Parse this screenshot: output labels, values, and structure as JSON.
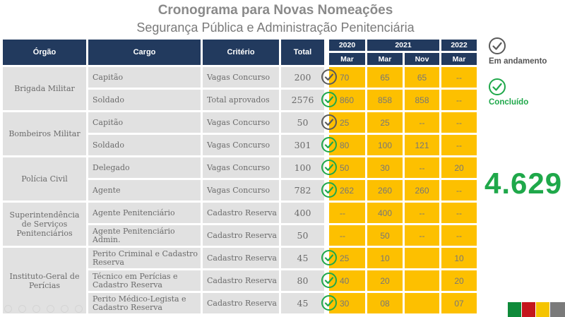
{
  "title": "Cronograma para Novas Nomeações",
  "subtitle": "Segurança Pública e Administração Penitenciária",
  "headers": {
    "orgao": "Órgão",
    "cargo": "Cargo",
    "criterio": "Critério",
    "total": "Total"
  },
  "years": {
    "y2020": "2020",
    "y2021": "2021",
    "y2022": "2022"
  },
  "months": {
    "m2020": "Mar",
    "m2021a": "Mar",
    "m2021b": "Nov",
    "m2022": "Mar"
  },
  "orgaos": [
    {
      "name": "Brigada Militar"
    },
    {
      "name": "Bombeiros Militar"
    },
    {
      "name": "Polícia Civil"
    },
    {
      "name": "Superintendência de Serviços Penitenciários"
    },
    {
      "name": "Instituto-Geral de Perícias"
    }
  ],
  "rows": [
    {
      "cargo": "Capitão",
      "criterio": "Vagas Concurso",
      "total": "200",
      "c2020": "70",
      "c2021a": "65",
      "c2021b": "65",
      "c2022": "--",
      "status": "in-progress"
    },
    {
      "cargo": "Soldado",
      "criterio": "Total aprovados",
      "total": "2576",
      "c2020": "860",
      "c2021a": "858",
      "c2021b": "858",
      "c2022": "--",
      "status": "done"
    },
    {
      "cargo": "Capitão",
      "criterio": "Vagas Concurso",
      "total": "50",
      "c2020": "25",
      "c2021a": "25",
      "c2021b": "--",
      "c2022": "--",
      "status": "in-progress"
    },
    {
      "cargo": "Soldado",
      "criterio": "Vagas Concurso",
      "total": "301",
      "c2020": "80",
      "c2021a": "100",
      "c2021b": "121",
      "c2022": "--",
      "status": "done"
    },
    {
      "cargo": "Delegado",
      "criterio": "Vagas Concurso",
      "total": "100",
      "c2020": "50",
      "c2021a": "30",
      "c2021b": "--",
      "c2022": "20",
      "status": "done"
    },
    {
      "cargo": "Agente",
      "criterio": "Vagas Concurso",
      "total": "782",
      "c2020": "262",
      "c2021a": "260",
      "c2021b": "260",
      "c2022": "--",
      "status": "done"
    },
    {
      "cargo": "Agente Penitenciário",
      "criterio": "Cadastro Reserva",
      "total": "400",
      "c2020": "--",
      "c2021a": "400",
      "c2021b": "--",
      "c2022": "--",
      "status": "none"
    },
    {
      "cargo": "Agente Penitenciário Admin.",
      "criterio": "Cadastro Reserva",
      "total": "50",
      "c2020": "--",
      "c2021a": "50",
      "c2021b": "--",
      "c2022": "--",
      "status": "none"
    },
    {
      "cargo": "Perito Criminal e Cadastro Reserva",
      "criterio": "Cadastro Reserva",
      "total": "45",
      "c2020": "25",
      "c2021a": "10",
      "c2021b": "",
      "c2022": "10",
      "status": "done"
    },
    {
      "cargo": "Técnico em Perícias e Cadastro Reserva",
      "criterio": "Cadastro Reserva",
      "total": "80",
      "c2020": "40",
      "c2021a": "20",
      "c2021b": "",
      "c2022": "20",
      "status": "done"
    },
    {
      "cargo": "Perito Médico-Legista e Cadastro Reserva",
      "criterio": "Cadastro Reserva",
      "total": "45",
      "c2020": "30",
      "c2021a": "08",
      "c2021b": "",
      "c2022": "07",
      "status": "done"
    }
  ],
  "legend": {
    "in_progress": "Em andamento",
    "done": "Concluído"
  },
  "grand_total": "4.629",
  "colors": {
    "header": "#223a5e",
    "yellow": "#fdc000",
    "gray": "#e1e1e1",
    "in_progress": "#5a5a5a",
    "done": "#1fa84a"
  },
  "icons": [
    "check-circle-icon"
  ]
}
